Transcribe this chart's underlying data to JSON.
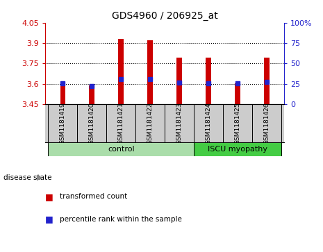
{
  "title": "GDS4960 / 206925_at",
  "samples": [
    "GSM1181419",
    "GSM1181420",
    "GSM1181421",
    "GSM1181422",
    "GSM1181423",
    "GSM1181424",
    "GSM1181425",
    "GSM1181426"
  ],
  "bar_values": [
    3.602,
    3.588,
    3.93,
    3.918,
    3.79,
    3.79,
    3.602,
    3.79
  ],
  "bar_bottom": 3.45,
  "blue_values": [
    3.601,
    3.585,
    3.634,
    3.633,
    3.61,
    3.601,
    3.601,
    3.615
  ],
  "ylim_left": [
    3.45,
    4.05
  ],
  "ylim_right": [
    0,
    100
  ],
  "yticks_left": [
    3.45,
    3.6,
    3.75,
    3.9,
    4.05
  ],
  "yticks_right": [
    0,
    25,
    50,
    75,
    100
  ],
  "grid_values": [
    3.6,
    3.75,
    3.9
  ],
  "bar_color": "#cc0000",
  "blue_color": "#2222cc",
  "control_samples": 5,
  "control_color": "#aaddaa",
  "iscu_color": "#44cc44",
  "cell_bg": "#cccccc",
  "plot_bg": "#ffffff"
}
